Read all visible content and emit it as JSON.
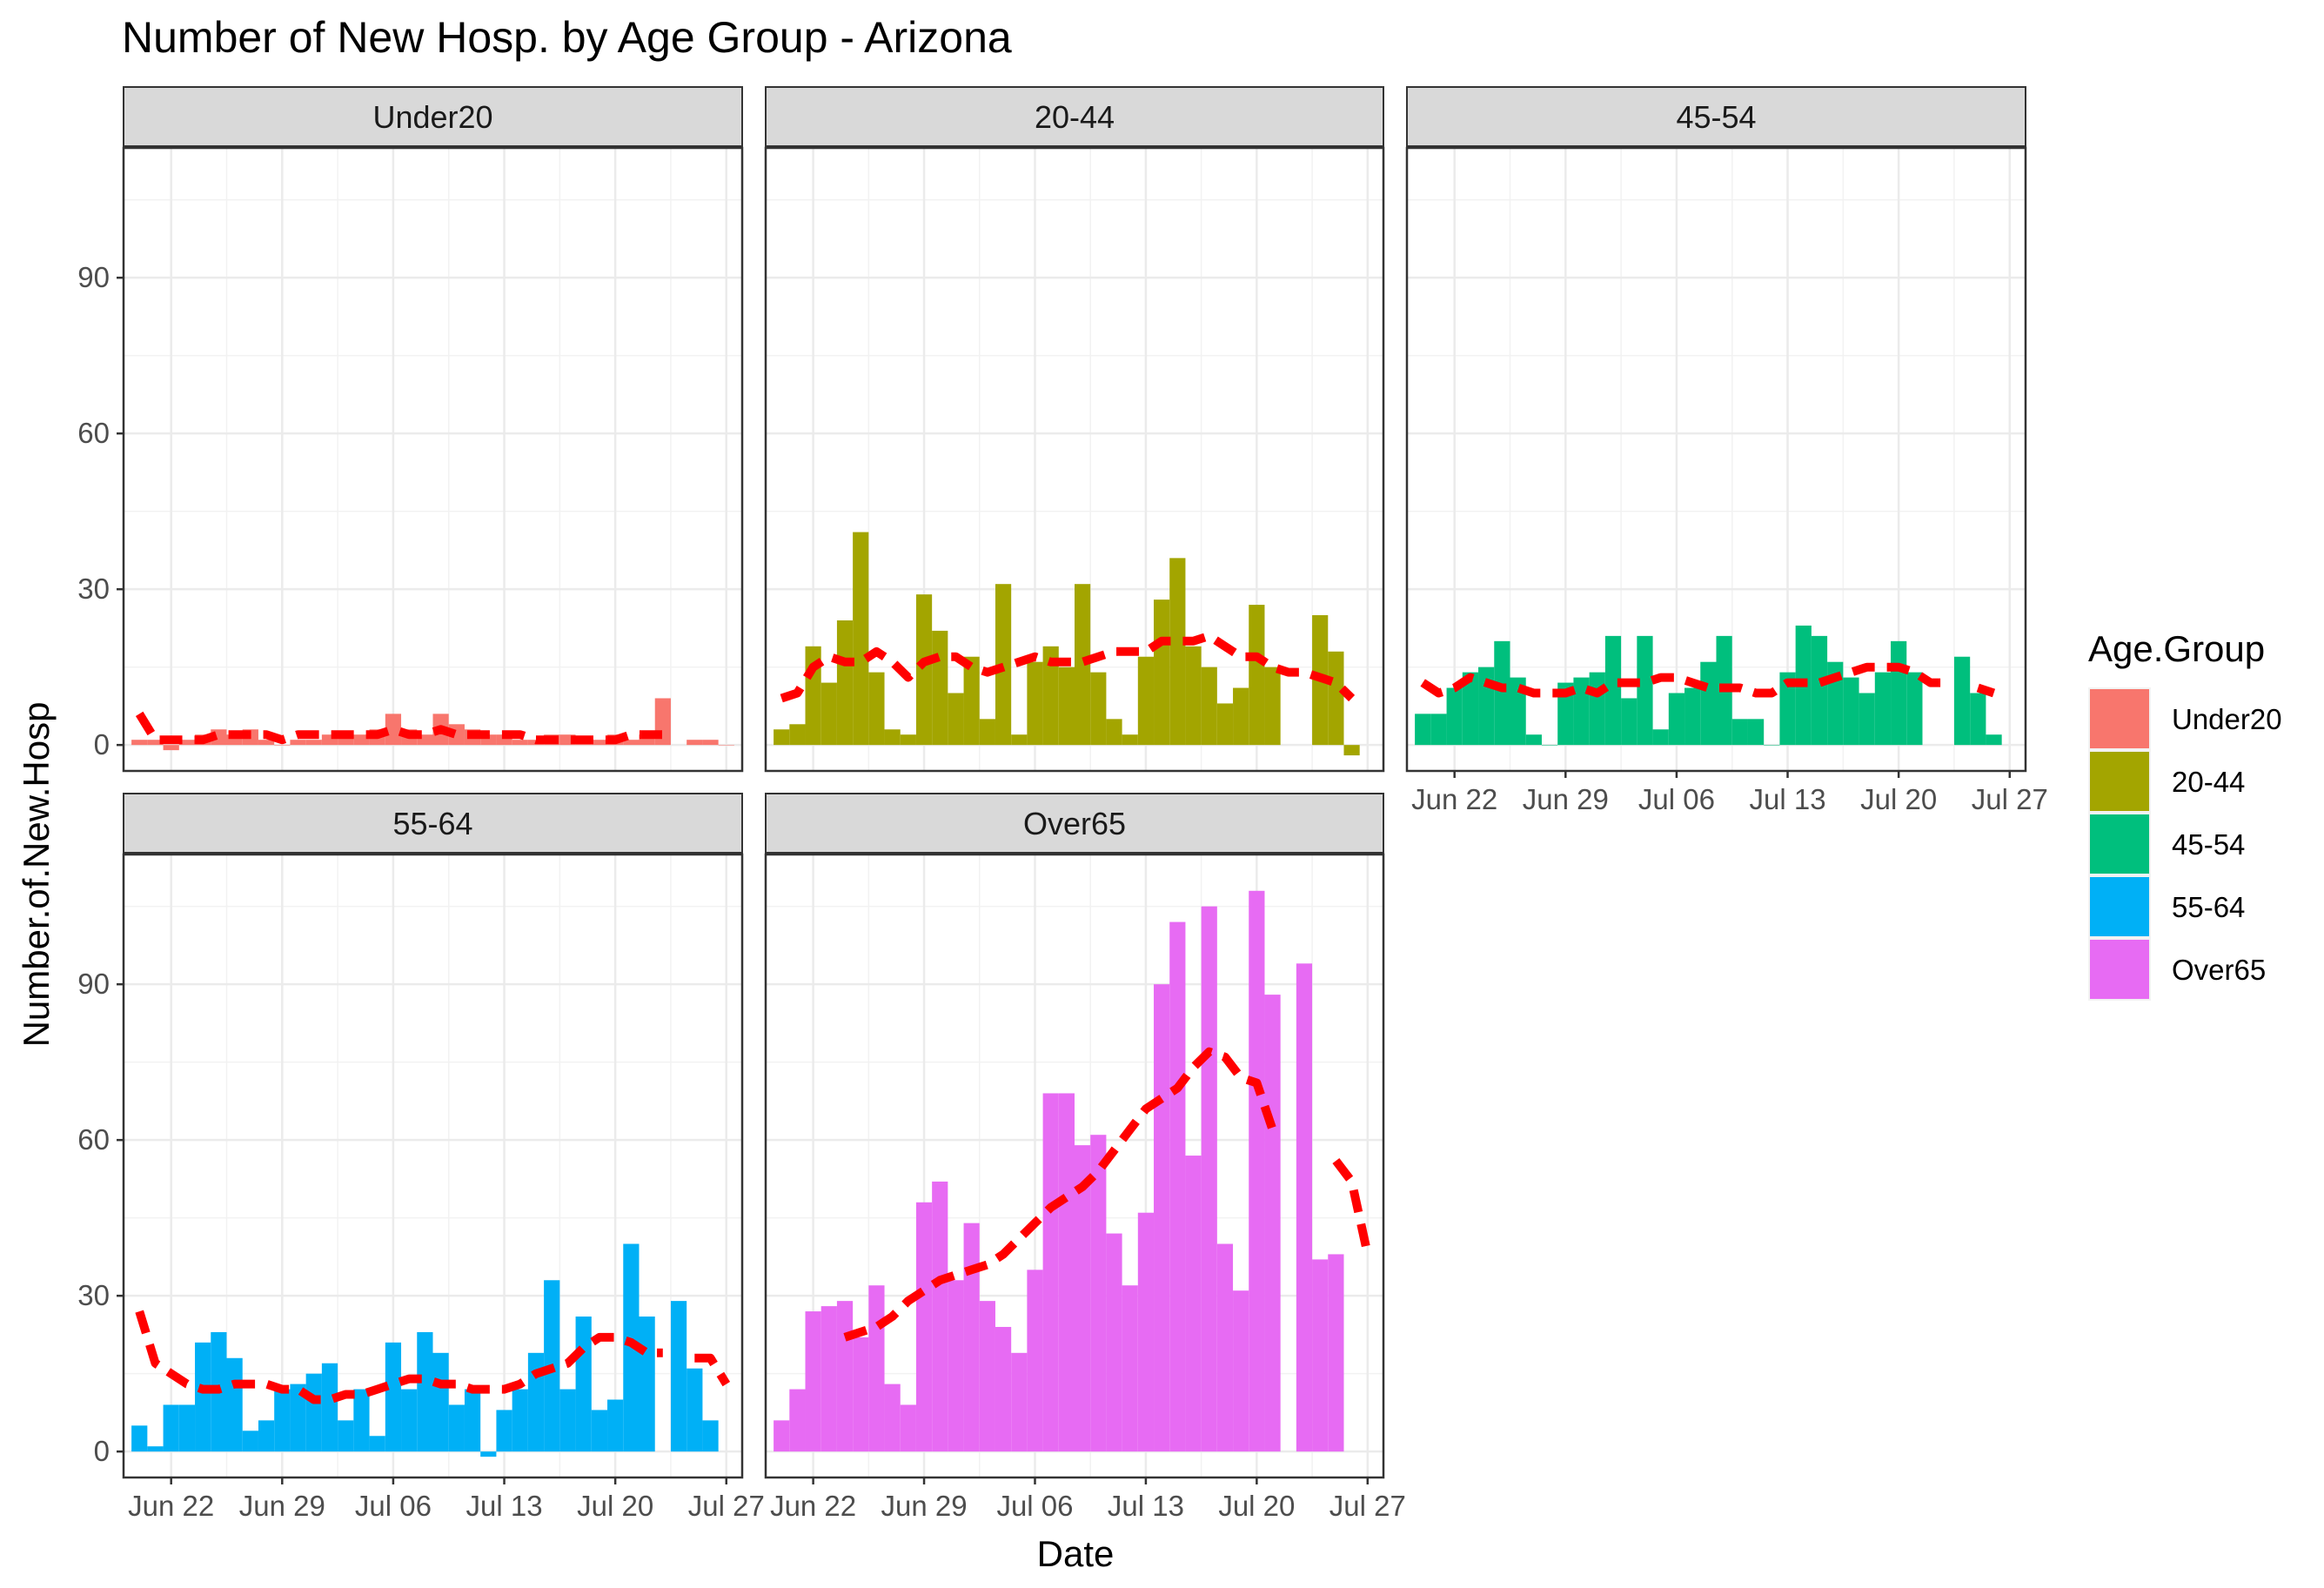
{
  "chart_data": {
    "type": "bar",
    "title": "Number of New Hosp. by Age Group - Arizona",
    "xlabel": "Date",
    "ylabel": "Number.of.New.Hosp",
    "x_ticks": [
      "Jun 22",
      "Jun 29",
      "Jul 06",
      "Jul 13",
      "Jul 20",
      "Jul 27"
    ],
    "x_tick_dates": [
      "2020-06-22",
      "2020-06-29",
      "2020-07-06",
      "2020-07-13",
      "2020-07-20",
      "2020-07-27"
    ],
    "y_ticks": [
      0,
      30,
      60,
      90
    ],
    "ylim": [
      -5,
      115
    ],
    "grid": true,
    "facet_by": "Age.Group",
    "legend": {
      "title": "Age.Group",
      "position": "right",
      "entries": [
        "Under20",
        "20-44",
        "45-54",
        "55-64",
        "Over65"
      ]
    },
    "trend_line": {
      "color": "#FF0000",
      "style": "dashed"
    },
    "dates": [
      "2020-06-20",
      "2020-06-21",
      "2020-06-22",
      "2020-06-23",
      "2020-06-24",
      "2020-06-25",
      "2020-06-26",
      "2020-06-27",
      "2020-06-28",
      "2020-06-29",
      "2020-06-30",
      "2020-07-01",
      "2020-07-02",
      "2020-07-03",
      "2020-07-04",
      "2020-07-05",
      "2020-07-06",
      "2020-07-07",
      "2020-07-08",
      "2020-07-09",
      "2020-07-10",
      "2020-07-11",
      "2020-07-12",
      "2020-07-13",
      "2020-07-14",
      "2020-07-15",
      "2020-07-16",
      "2020-07-17",
      "2020-07-18",
      "2020-07-19",
      "2020-07-20",
      "2020-07-21",
      "2020-07-22",
      "2020-07-23",
      "2020-07-24",
      "2020-07-25",
      "2020-07-26",
      "2020-07-27"
    ],
    "series": [
      {
        "name": "Under20",
        "color": "#F8766D",
        "values": [
          1,
          1,
          -1,
          1,
          2,
          3,
          2,
          3,
          1,
          0,
          1,
          1,
          2,
          2,
          2,
          3,
          6,
          3,
          2,
          6,
          4,
          3,
          2,
          2,
          1,
          1,
          2,
          2,
          1,
          1,
          2,
          1,
          2,
          9,
          null,
          1,
          1,
          0
        ],
        "trend": [
          6,
          1,
          1,
          1,
          1,
          2,
          2,
          2,
          2,
          1,
          2,
          2,
          2,
          2,
          2,
          2,
          3,
          2,
          2,
          3,
          2,
          2,
          2,
          2,
          2,
          1,
          1,
          1,
          1,
          1,
          1,
          2,
          2,
          2,
          null,
          null,
          null,
          null
        ]
      },
      {
        "name": "20-44",
        "color": "#A3A500",
        "values": [
          3,
          4,
          19,
          12,
          24,
          41,
          14,
          3,
          2,
          29,
          22,
          10,
          17,
          5,
          31,
          2,
          16,
          19,
          15,
          31,
          14,
          5,
          2,
          17,
          28,
          36,
          19,
          15,
          8,
          11,
          27,
          15,
          null,
          null,
          25,
          18,
          -2,
          null
        ],
        "trend": [
          9,
          10,
          15,
          17,
          16,
          16,
          18,
          16,
          13,
          16,
          17,
          17,
          15,
          14,
          15,
          16,
          17,
          16,
          16,
          16,
          17,
          18,
          18,
          18,
          20,
          20,
          20,
          21,
          19,
          17,
          17,
          15,
          14,
          14,
          13,
          12,
          9,
          null
        ]
      },
      {
        "name": "45-54",
        "color": "#00BF7D",
        "values": [
          6,
          6,
          11,
          14,
          15,
          20,
          13,
          2,
          0,
          12,
          13,
          14,
          21,
          9,
          21,
          3,
          10,
          11,
          16,
          21,
          5,
          5,
          0,
          14,
          23,
          21,
          16,
          13,
          10,
          14,
          20,
          14,
          null,
          null,
          17,
          10,
          2,
          null
        ],
        "trend": [
          12,
          10,
          11,
          13,
          12,
          11,
          11,
          10,
          10,
          10,
          11,
          10,
          12,
          12,
          12,
          13,
          13,
          12,
          11,
          11,
          11,
          10,
          10,
          12,
          12,
          12,
          13,
          14,
          15,
          15,
          15,
          14,
          12,
          12,
          null,
          11,
          10,
          null
        ]
      },
      {
        "name": "55-64",
        "color": "#00B0F6",
        "values": [
          5,
          1,
          9,
          9,
          21,
          23,
          18,
          4,
          6,
          12,
          13,
          15,
          17,
          6,
          12,
          3,
          21,
          12,
          23,
          19,
          9,
          12,
          -1,
          8,
          12,
          19,
          33,
          12,
          26,
          8,
          10,
          40,
          26,
          null,
          29,
          16,
          6,
          null
        ],
        "trend": [
          27,
          17,
          15,
          13,
          12,
          12,
          13,
          13,
          13,
          12,
          12,
          10,
          10,
          11,
          11,
          12,
          13,
          14,
          14,
          13,
          13,
          12,
          12,
          12,
          13,
          15,
          16,
          17,
          20,
          22,
          22,
          21,
          19,
          19,
          null,
          18,
          18,
          13
        ]
      },
      {
        "name": "Over65",
        "color": "#E76BF3",
        "values": [
          6,
          12,
          27,
          28,
          29,
          22,
          32,
          13,
          9,
          48,
          52,
          33,
          44,
          29,
          24,
          19,
          35,
          69,
          69,
          59,
          61,
          42,
          32,
          46,
          90,
          102,
          57,
          105,
          40,
          31,
          108,
          88,
          null,
          94,
          37,
          38,
          null,
          null
        ],
        "trend": [
          null,
          null,
          null,
          null,
          22,
          23,
          24,
          26,
          29,
          31,
          33,
          34,
          35,
          36,
          38,
          41,
          44,
          47,
          49,
          51,
          54,
          58,
          62,
          66,
          68,
          70,
          74,
          77,
          76,
          72,
          71,
          62,
          null,
          null,
          null,
          56,
          52,
          38
        ]
      }
    ]
  }
}
